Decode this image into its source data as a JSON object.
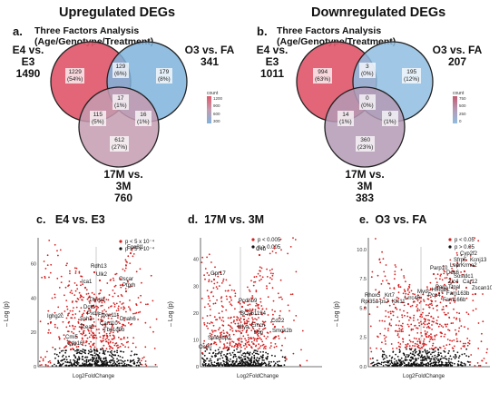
{
  "headers": {
    "left": "Upregulated DEGs",
    "right": "Downregulated DEGs"
  },
  "venn": [
    {
      "letter": "a.",
      "subtitle": "Three Factors Analysis (Age/Genotype/Treatment)",
      "sets": [
        {
          "name": "E4 vs. E3",
          "count": "1490"
        },
        {
          "name": "O3 vs. FA",
          "count": "341"
        },
        {
          "name": "17M vs. 3M",
          "count": "760"
        }
      ],
      "regions": {
        "a_only": "1229\n(54%)",
        "b_only": "179\n(8%)",
        "c_only": "612\n(27%)",
        "ab": "129\n(6%)",
        "ac": "115\n(5%)",
        "bc": "16\n(1%)",
        "abc": "17\n(1%)"
      },
      "legend": {
        "title": "count",
        "ticks": [
          "1200",
          "900",
          "600",
          "300"
        ]
      },
      "colors": {
        "a": "#e0596b",
        "b": "#7fb3dc",
        "c": "#c49bb0"
      }
    },
    {
      "letter": "b.",
      "subtitle": "Three Factors Analysis (Age/Genotype/Treatment)",
      "sets": [
        {
          "name": "E4 vs. E3",
          "count": "1011"
        },
        {
          "name": "O3 vs. FA",
          "count": "207"
        },
        {
          "name": "17M vs. 3M",
          "count": "383"
        }
      ],
      "regions": {
        "a_only": "994\n(63%)",
        "b_only": "195\n(12%)",
        "c_only": "360\n(23%)",
        "ab": "3\n(0%)",
        "ac": "14\n(1%)",
        "bc": "9\n(1%)",
        "abc": "0\n(0%)"
      },
      "legend": {
        "title": "count",
        "ticks": [
          "750",
          "500",
          "250",
          "0"
        ]
      },
      "colors": {
        "a": "#e0596b",
        "b": "#8fbde0",
        "c": "#b49ab5"
      }
    }
  ],
  "volcanos": [
    {
      "letter": "c.",
      "title": "E4 vs. E3",
      "legend": [
        "p < 5 x 10⁻⁴",
        "p > 5 x 10⁻⁴"
      ],
      "yticks": [
        "60",
        "40",
        "20",
        "0"
      ],
      "ylim": [
        0,
        75
      ],
      "xlabel": "Log2FoldChange",
      "ylabel": "– Log (p)",
      "genes": [
        "Eps8l1",
        "Rdh13",
        "Ulk2",
        "Ica1",
        "Ptprh",
        "Oscar",
        "Thnsl1",
        "Dctd",
        "Ighg2c",
        "Pxdn",
        "Fbxw11",
        "Dnah6",
        "Ssh3",
        "Card10",
        "Tcea2",
        "Tbc1d9b",
        "Cmi5",
        "Cdc16"
      ]
    },
    {
      "letter": "d.",
      "title": "17M vs. 3M",
      "legend": [
        "p < 0.005",
        "p > 0.005"
      ],
      "yticks": [
        "40",
        "30",
        "20",
        "10",
        "0"
      ],
      "ylim": [
        0,
        48
      ],
      "xlabel": "Log2FoldChange",
      "ylabel": "– Log (p)",
      "genes": [
        "C4b",
        "Gpr17",
        "Pcdhb9",
        "BC061194",
        "Cd22",
        "Nfya",
        "Emcn",
        "Smok2b",
        "Lbp",
        "Selenbp2",
        "Oc90"
      ]
    },
    {
      "letter": "e.",
      "title": "O3 vs. FA",
      "legend": [
        "p < 0.05",
        "p > 0.05"
      ],
      "yticks": [
        "10.0",
        "7.5",
        "5.0",
        "2.5",
        "0.0"
      ],
      "ylim": [
        0,
        11
      ],
      "xlabel": "Log2FoldChange",
      "ylabel": "– Log (p)",
      "genes": [
        "Cyp2f2",
        "Sfrp5",
        "Kcnj13",
        "Lepr",
        "Krme2",
        "Parp10",
        "Ddx6",
        "Sostdc1",
        "Zic4",
        "Car12",
        "Perp",
        "Ttpal",
        "Zscan10",
        "Rhox5",
        "Krt7",
        "Pcp4",
        "Fam163b",
        "Rpl35a-ps7",
        "Klk11",
        "Fam166b",
        "Lrrc46",
        "Myoc",
        "Hmgb1"
      ]
    }
  ],
  "colors": {
    "sig": "#d42020",
    "nonsig": "#111111"
  }
}
